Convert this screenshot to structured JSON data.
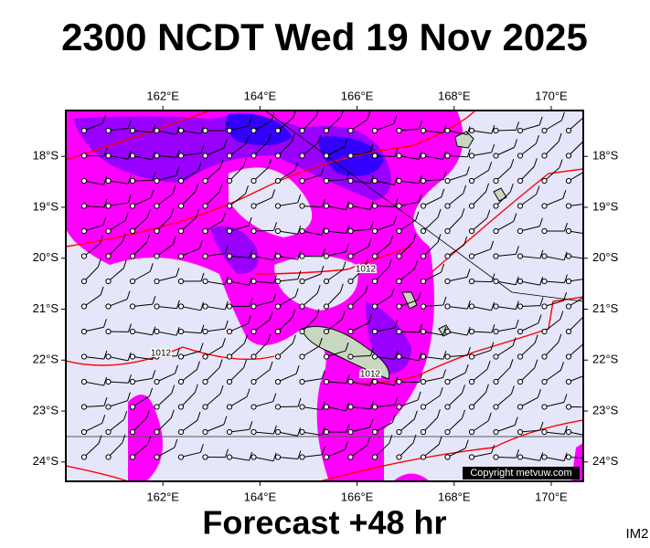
{
  "header": {
    "title": "2300 NCDT Wed 19 Nov 2025"
  },
  "footer": {
    "subtitle": "Forecast +48 hr",
    "image_id": "IM2"
  },
  "map": {
    "lon_lim": [
      160,
      170.66
    ],
    "lat_lim": [
      17.1,
      24.38
    ],
    "lon_ticks": [
      {
        "value": 162,
        "label": "162°E"
      },
      {
        "value": 164,
        "label": "164°E"
      },
      {
        "value": 166,
        "label": "166°E"
      },
      {
        "value": 168,
        "label": "168°E"
      },
      {
        "value": 170,
        "label": "170°E"
      }
    ],
    "lat_ticks": [
      {
        "value": 18,
        "label": "18°S"
      },
      {
        "value": 19,
        "label": "19°S"
      },
      {
        "value": 20,
        "label": "20°S"
      },
      {
        "value": 21,
        "label": "21°S"
      },
      {
        "value": 22,
        "label": "22°S"
      },
      {
        "value": 23,
        "label": "23°S"
      },
      {
        "value": 24,
        "label": "24°S"
      }
    ],
    "isobar_labels": [
      "1012",
      "1012",
      "1012"
    ],
    "copyright": "Copyright metvuw.com"
  }
}
